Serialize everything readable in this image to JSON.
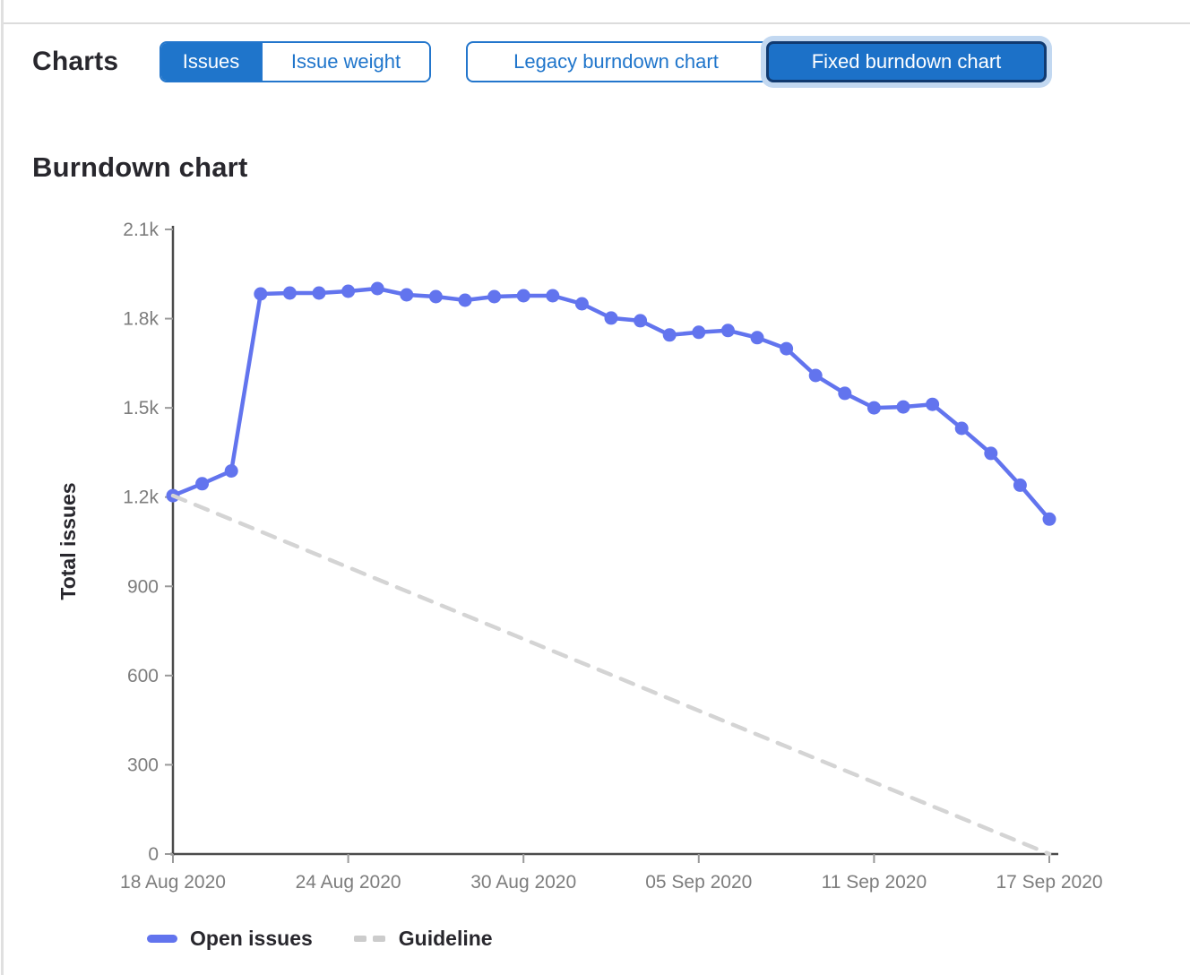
{
  "page": {
    "charts_label": "Charts",
    "metric_toggle": {
      "options": [
        "Issues",
        "Issue weight"
      ],
      "selected": "Issues"
    },
    "view_toggle": {
      "options": [
        "Legacy burndown chart",
        "Fixed burndown chart"
      ],
      "selected": "Fixed burndown chart"
    }
  },
  "section": {
    "title": "Burndown chart"
  },
  "legend": {
    "open_issues": "Open issues",
    "guideline": "Guideline"
  },
  "colors": {
    "accent_blue": "#1f75cb",
    "series_blue": "#6274ee",
    "guideline_gray": "#d4d4d4",
    "axis_line": "#4b4b4b",
    "tick_gray": "#9a9a9a"
  },
  "chart_data": {
    "type": "line",
    "title": "Burndown chart",
    "xlabel": "",
    "ylabel": "Total issues",
    "ylim": [
      0,
      2100
    ],
    "grid": false,
    "legend_position": "bottom",
    "y_ticks": {
      "values": [
        2100,
        1800,
        1500,
        1200,
        900,
        600,
        300,
        0
      ],
      "labels": [
        "2.1k",
        "1.8k",
        "1.5k",
        "1.2k",
        "900",
        "600",
        "300",
        "0"
      ]
    },
    "x_ticks": [
      {
        "day": 0,
        "label": "18 Aug 2020"
      },
      {
        "day": 6,
        "label": "24 Aug 2020"
      },
      {
        "day": 12,
        "label": "30 Aug 2020"
      },
      {
        "day": 18,
        "label": "05 Sep 2020"
      },
      {
        "day": 24,
        "label": "11 Sep 2020"
      },
      {
        "day": 30,
        "label": "17 Sep 2020"
      }
    ],
    "x_dates": [
      "2020-08-18",
      "2020-08-19",
      "2020-08-20",
      "2020-08-21",
      "2020-08-22",
      "2020-08-23",
      "2020-08-24",
      "2020-08-25",
      "2020-08-26",
      "2020-08-27",
      "2020-08-28",
      "2020-08-29",
      "2020-08-30",
      "2020-08-31",
      "2020-09-01",
      "2020-09-02",
      "2020-09-03",
      "2020-09-04",
      "2020-09-05",
      "2020-09-06",
      "2020-09-07",
      "2020-09-08",
      "2020-09-09",
      "2020-09-10",
      "2020-09-11",
      "2020-09-12",
      "2020-09-13",
      "2020-09-14",
      "2020-09-15",
      "2020-09-16",
      "2020-09-17"
    ],
    "series": [
      {
        "name": "Open issues",
        "type": "line",
        "color": "#6274ee",
        "marker": true,
        "values": [
          1205,
          1245,
          1288,
          1883,
          1886,
          1886,
          1892,
          1901,
          1880,
          1874,
          1862,
          1874,
          1877,
          1877,
          1850,
          1802,
          1793,
          1745,
          1754,
          1760,
          1736,
          1699,
          1609,
          1549,
          1500,
          1503,
          1512,
          1431,
          1347,
          1240,
          1126
        ]
      },
      {
        "name": "Guideline",
        "type": "line",
        "color": "#d4d4d4",
        "dashed": true,
        "marker": false,
        "x_days": [
          0,
          30
        ],
        "values": [
          1205,
          0
        ]
      }
    ]
  }
}
